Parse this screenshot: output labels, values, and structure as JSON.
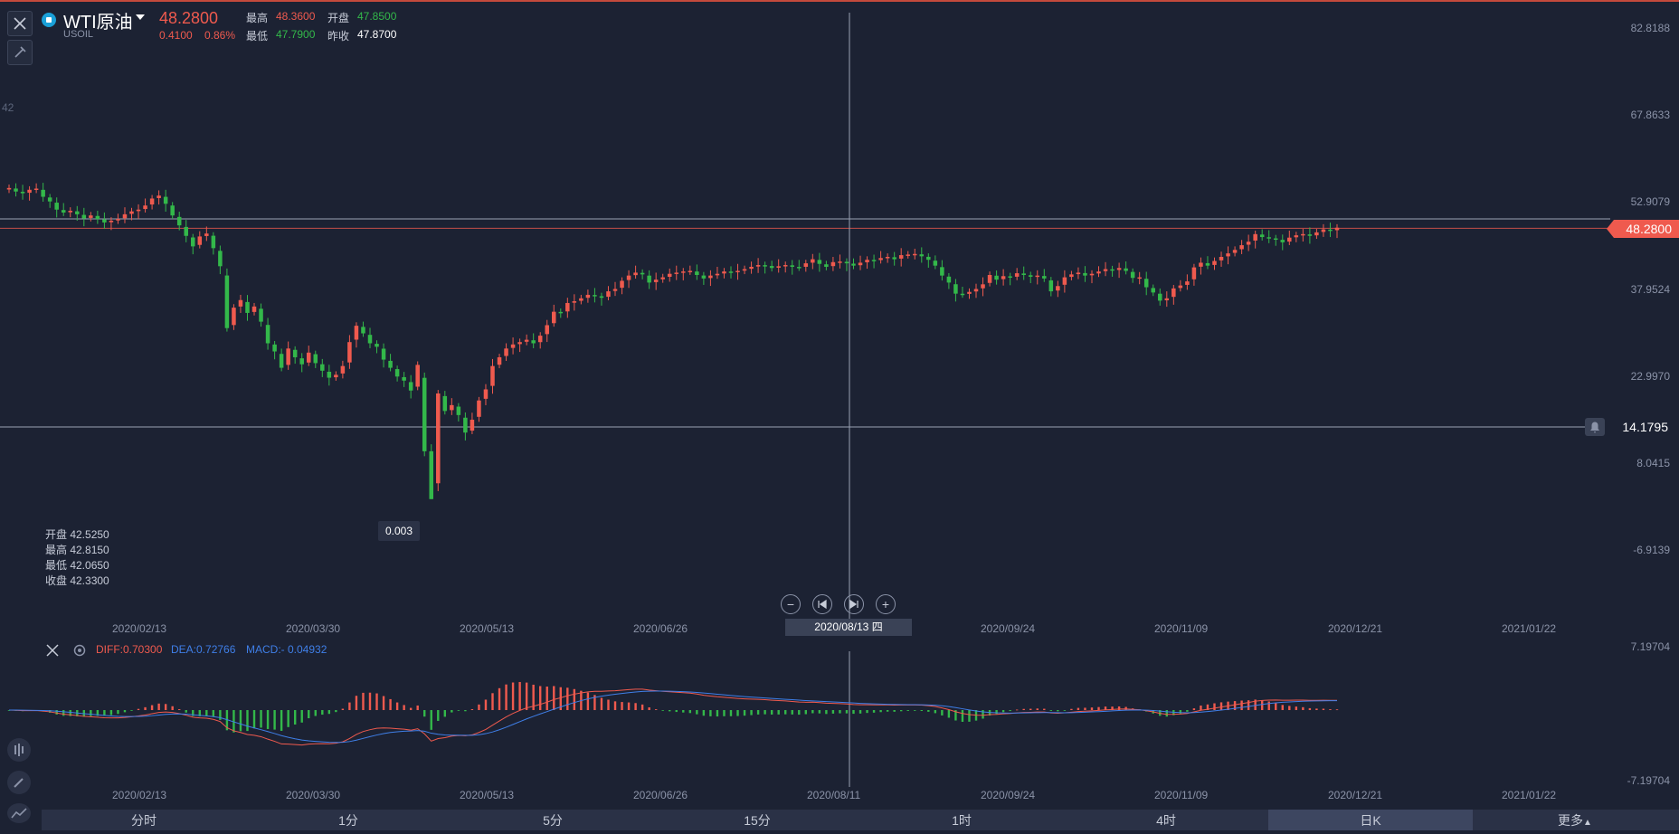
{
  "header": {
    "symbol_name": "WTI原油",
    "symbol_code": "USOIL",
    "last_price": "48.2800",
    "change": "0.4100",
    "change_pct": "0.86%",
    "high_label": "最高",
    "high": "48.3600",
    "open_label": "开盘",
    "open": "47.8500",
    "low_label": "最低",
    "low": "47.7900",
    "prev_close_label": "昨收",
    "prev_close": "47.8700"
  },
  "price_axis": [
    "82.8188",
    "67.8633",
    "52.9079",
    "37.9524",
    "22.9970",
    "8.0415",
    "-6.9139"
  ],
  "price_tag": "48.2800",
  "line_tag": "14.1795",
  "low_tag": "0.003",
  "ohlc_box": {
    "open": "开盘 42.5250",
    "high": "最高 42.8150",
    "low": "最低 42.0650",
    "close": "收盘 42.3300"
  },
  "date_axis": [
    "2020/02/13",
    "2020/03/30",
    "2020/05/13",
    "2020/06/26",
    "2020/09/24",
    "2020/11/09",
    "2020/12/21",
    "2021/01/22"
  ],
  "crosshair_date": "2020/08/13 四",
  "crosshair_date_lower": "2020/08/11",
  "macd": {
    "diff": "DIFF:0.70300",
    "dea": "DEA:0.72766",
    "macd": "MACD:- 0.04932",
    "axis_top": "7.19704",
    "axis_bottom": "-7.19704"
  },
  "tabs": [
    "分时",
    "1分",
    "5分",
    "15分",
    "1时",
    "4时",
    "日K",
    "更多"
  ],
  "active_tab": "日K",
  "left_partial_label": "42",
  "colors": {
    "up": "#ef5a4e",
    "down": "#33b84a",
    "diff": "#ef5a4e",
    "dea": "#3f7fe8"
  },
  "chart_data": {
    "type": "candlestick",
    "title": "",
    "ylim": [
      -6.9139,
      82.8188
    ],
    "candles_close": [
      55.1,
      54.5,
      54.2,
      54.8,
      55.0,
      53.6,
      52.8,
      51.4,
      50.9,
      51.2,
      50.6,
      49.9,
      50.4,
      49.8,
      49.2,
      49.5,
      49.8,
      50.6,
      51.1,
      51.4,
      52.1,
      53.3,
      53.8,
      52.4,
      50.4,
      48.7,
      46.9,
      45.1,
      46.8,
      47.3,
      44.8,
      41.7,
      31.1,
      34.6,
      35.9,
      33.7,
      34.8,
      32.2,
      28.5,
      27.1,
      24.3,
      27.6,
      26.1,
      24.9,
      26.9,
      25.1,
      23.8,
      22.6,
      23.1,
      24.6,
      28.7,
      31.5,
      30.2,
      28.5,
      27.9,
      25.7,
      24.3,
      22.8,
      22.1,
      20.4,
      24.8,
      10.0,
      1.8,
      19.9,
      16.9,
      17.9,
      16.2,
      13.2,
      15.4,
      18.7,
      20.6,
      24.6,
      26.1,
      27.6,
      28.3,
      28.7,
      29.1,
      28.5,
      29.8,
      31.6,
      33.9,
      33.7,
      35.4,
      35.7,
      36.2,
      36.8,
      36.6,
      36.3,
      37.4,
      37.8,
      39.2,
      40.1,
      40.6,
      40.3,
      38.9,
      39.4,
      39.8,
      40.4,
      40.6,
      40.8,
      40.9,
      40.2,
      39.6,
      40.1,
      40.4,
      40.8,
      40.7,
      40.9,
      41.2,
      41.6,
      41.9,
      41.8,
      41.4,
      41.7,
      41.9,
      41.6,
      41.5,
      42.2,
      42.9,
      42.1,
      41.6,
      42.4,
      42.5,
      42.2,
      41.8,
      42.3,
      42.8,
      42.7,
      43.1,
      43.3,
      42.9,
      43.6,
      43.7,
      43.8,
      43.4,
      42.8,
      41.8,
      40.1,
      38.9,
      37.0,
      36.9,
      37.3,
      37.8,
      38.6,
      40.2,
      39.4,
      40.0,
      39.8,
      40.5,
      40.2,
      39.9,
      40.1,
      39.6,
      37.4,
      38.3,
      39.8,
      40.3,
      40.6,
      40.1,
      40.4,
      40.8,
      41.2,
      41.0,
      41.4,
      40.9,
      39.7,
      39.8,
      38.1,
      37.2,
      35.8,
      36.2,
      37.9,
      38.4,
      39.1,
      41.5,
      42.3,
      41.8,
      42.6,
      43.3,
      43.9,
      44.5,
      45.3,
      45.9,
      47.2,
      46.7,
      46.5,
      46.3,
      45.8,
      46.6,
      47.0,
      47.2,
      46.9,
      47.5,
      48.0,
      47.8,
      48.3
    ]
  }
}
